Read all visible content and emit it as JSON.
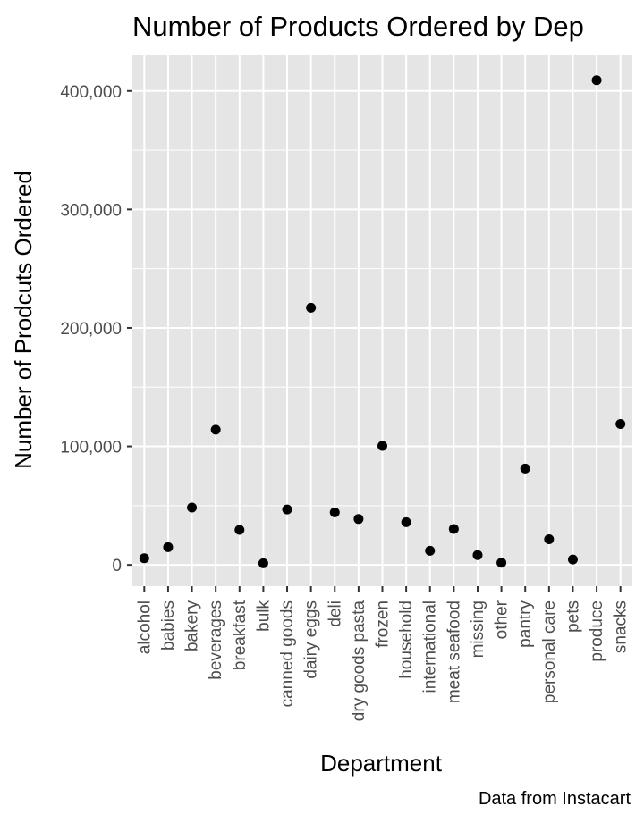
{
  "chart_data": {
    "type": "scatter",
    "title": "Number of Products Ordered by Dep",
    "xlabel": "Department",
    "ylabel": "Number of Prodcuts Ordered",
    "caption": "Data from Instacart",
    "categories": [
      "alcohol",
      "babies",
      "bakery",
      "beverages",
      "breakfast",
      "bulk",
      "canned goods",
      "dairy eggs",
      "deli",
      "dry goods pasta",
      "frozen",
      "household",
      "international",
      "meat seafood",
      "missing",
      "other",
      "pantry",
      "personal care",
      "pets",
      "produce",
      "snacks"
    ],
    "values": [
      5598,
      14941,
      48394,
      114046,
      29500,
      1359,
      46799,
      217051,
      44291,
      38713,
      100426,
      35986,
      11902,
      30307,
      8251,
      1795,
      81242,
      21570,
      4497,
      409087,
      118862
    ],
    "ylim": [
      -18000,
      430000
    ],
    "yticks": [
      0,
      100000,
      200000,
      300000,
      400000
    ],
    "ytick_labels": [
      "0",
      "100,000",
      "200,000",
      "300,000",
      "400,000"
    ],
    "grid": true,
    "panel_background": "#e5e5e5",
    "grid_color": "#ffffff",
    "point_color": "#000000"
  }
}
